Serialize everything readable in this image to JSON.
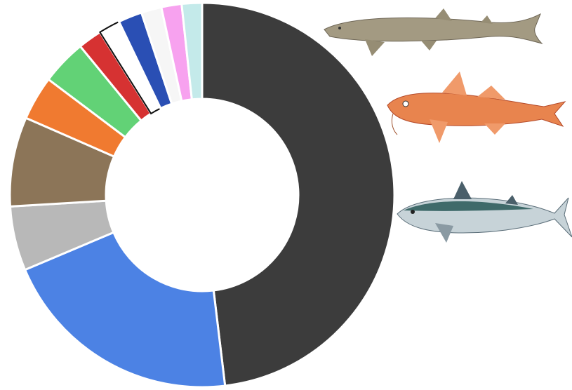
{
  "chart_data": {
    "type": "donut",
    "values": [
      48,
      20.5,
      5.4,
      7.5,
      3.7,
      3.8,
      2,
      1.8,
      2,
      1.7,
      1.7,
      1.7
    ],
    "colors": [
      "#3c3c3c",
      "#4c82e4",
      "#b8b8b8",
      "#8c7558",
      "#f07a30",
      "#62d276",
      "#d63232",
      "#ffffff",
      "#2a4fb4",
      "#f6f6f6",
      "#f7a2ef",
      "#c4eaea"
    ]
  }
}
